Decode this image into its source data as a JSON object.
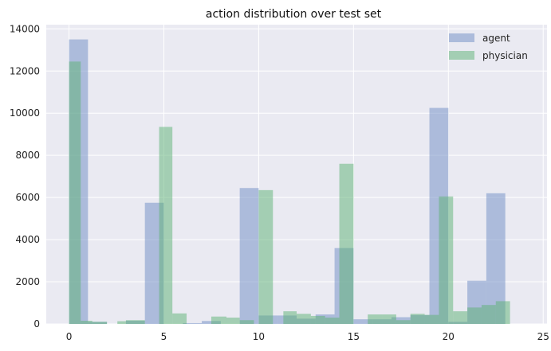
{
  "chart_data": {
    "type": "bar",
    "subtype": "overlapping-histogram",
    "title": "action distribution over test set",
    "xlabel": "",
    "ylabel": "",
    "xlim": [
      -1.2,
      25.2
    ],
    "ylim": [
      0,
      14200
    ],
    "xticks": [
      0,
      5,
      10,
      15,
      20,
      25
    ],
    "yticks": [
      0,
      2000,
      4000,
      6000,
      8000,
      10000,
      12000,
      14000
    ],
    "grid": true,
    "legend_position": "top-right",
    "series": [
      {
        "name": "agent",
        "color": "#6d8bc4",
        "bins": [
          {
            "x0": 0.0,
            "x1": 1.0,
            "value": 13500
          },
          {
            "x0": 1.0,
            "x1": 2.0,
            "value": 100
          },
          {
            "x0": 3.0,
            "x1": 4.0,
            "value": 150
          },
          {
            "x0": 4.0,
            "x1": 5.0,
            "value": 5750
          },
          {
            "x0": 6.0,
            "x1": 7.0,
            "value": 40
          },
          {
            "x0": 7.0,
            "x1": 8.0,
            "value": 140
          },
          {
            "x0": 9.0,
            "x1": 10.0,
            "value": 6450
          },
          {
            "x0": 10.0,
            "x1": 11.0,
            "value": 400
          },
          {
            "x0": 11.0,
            "x1": 12.0,
            "value": 400
          },
          {
            "x0": 12.0,
            "x1": 13.0,
            "value": 250
          },
          {
            "x0": 13.0,
            "x1": 14.0,
            "value": 450
          },
          {
            "x0": 14.0,
            "x1": 15.0,
            "value": 3600
          },
          {
            "x0": 15.0,
            "x1": 16.0,
            "value": 220
          },
          {
            "x0": 16.0,
            "x1": 17.0,
            "value": 220
          },
          {
            "x0": 17.0,
            "x1": 18.0,
            "value": 320
          },
          {
            "x0": 18.0,
            "x1": 19.0,
            "value": 420
          },
          {
            "x0": 19.0,
            "x1": 20.0,
            "value": 10250
          },
          {
            "x0": 20.0,
            "x1": 21.0,
            "value": 100
          },
          {
            "x0": 21.0,
            "x1": 22.0,
            "value": 2050
          },
          {
            "x0": 22.0,
            "x1": 23.0,
            "value": 6200
          }
        ]
      },
      {
        "name": "physician",
        "color": "#5cb274",
        "bins": [
          {
            "x0": 0.0,
            "x1": 0.62,
            "value": 12450
          },
          {
            "x0": 0.62,
            "x1": 1.23,
            "value": 150
          },
          {
            "x0": 1.23,
            "x1": 2.0,
            "value": 100
          },
          {
            "x0": 2.55,
            "x1": 3.0,
            "value": 130
          },
          {
            "x0": 3.0,
            "x1": 4.0,
            "value": 180
          },
          {
            "x0": 4.75,
            "x1": 5.45,
            "value": 9350
          },
          {
            "x0": 5.45,
            "x1": 6.2,
            "value": 500
          },
          {
            "x0": 7.5,
            "x1": 8.3,
            "value": 350
          },
          {
            "x0": 8.3,
            "x1": 9.0,
            "value": 300
          },
          {
            "x0": 9.0,
            "x1": 9.75,
            "value": 180
          },
          {
            "x0": 10.0,
            "x1": 10.75,
            "value": 6350
          },
          {
            "x0": 11.3,
            "x1": 12.0,
            "value": 600
          },
          {
            "x0": 12.0,
            "x1": 12.75,
            "value": 480
          },
          {
            "x0": 12.75,
            "x1": 13.5,
            "value": 380
          },
          {
            "x0": 13.5,
            "x1": 14.25,
            "value": 300
          },
          {
            "x0": 14.25,
            "x1": 15.0,
            "value": 7600
          },
          {
            "x0": 15.75,
            "x1": 16.5,
            "value": 450
          },
          {
            "x0": 16.5,
            "x1": 17.25,
            "value": 450
          },
          {
            "x0": 17.25,
            "x1": 18.0,
            "value": 180
          },
          {
            "x0": 18.0,
            "x1": 18.75,
            "value": 480
          },
          {
            "x0": 18.75,
            "x1": 19.5,
            "value": 430
          },
          {
            "x0": 19.5,
            "x1": 20.25,
            "value": 6050
          },
          {
            "x0": 20.25,
            "x1": 21.0,
            "value": 600
          },
          {
            "x0": 21.0,
            "x1": 21.75,
            "value": 780
          },
          {
            "x0": 21.75,
            "x1": 22.5,
            "value": 900
          },
          {
            "x0": 22.5,
            "x1": 23.25,
            "value": 1080
          }
        ]
      }
    ]
  }
}
